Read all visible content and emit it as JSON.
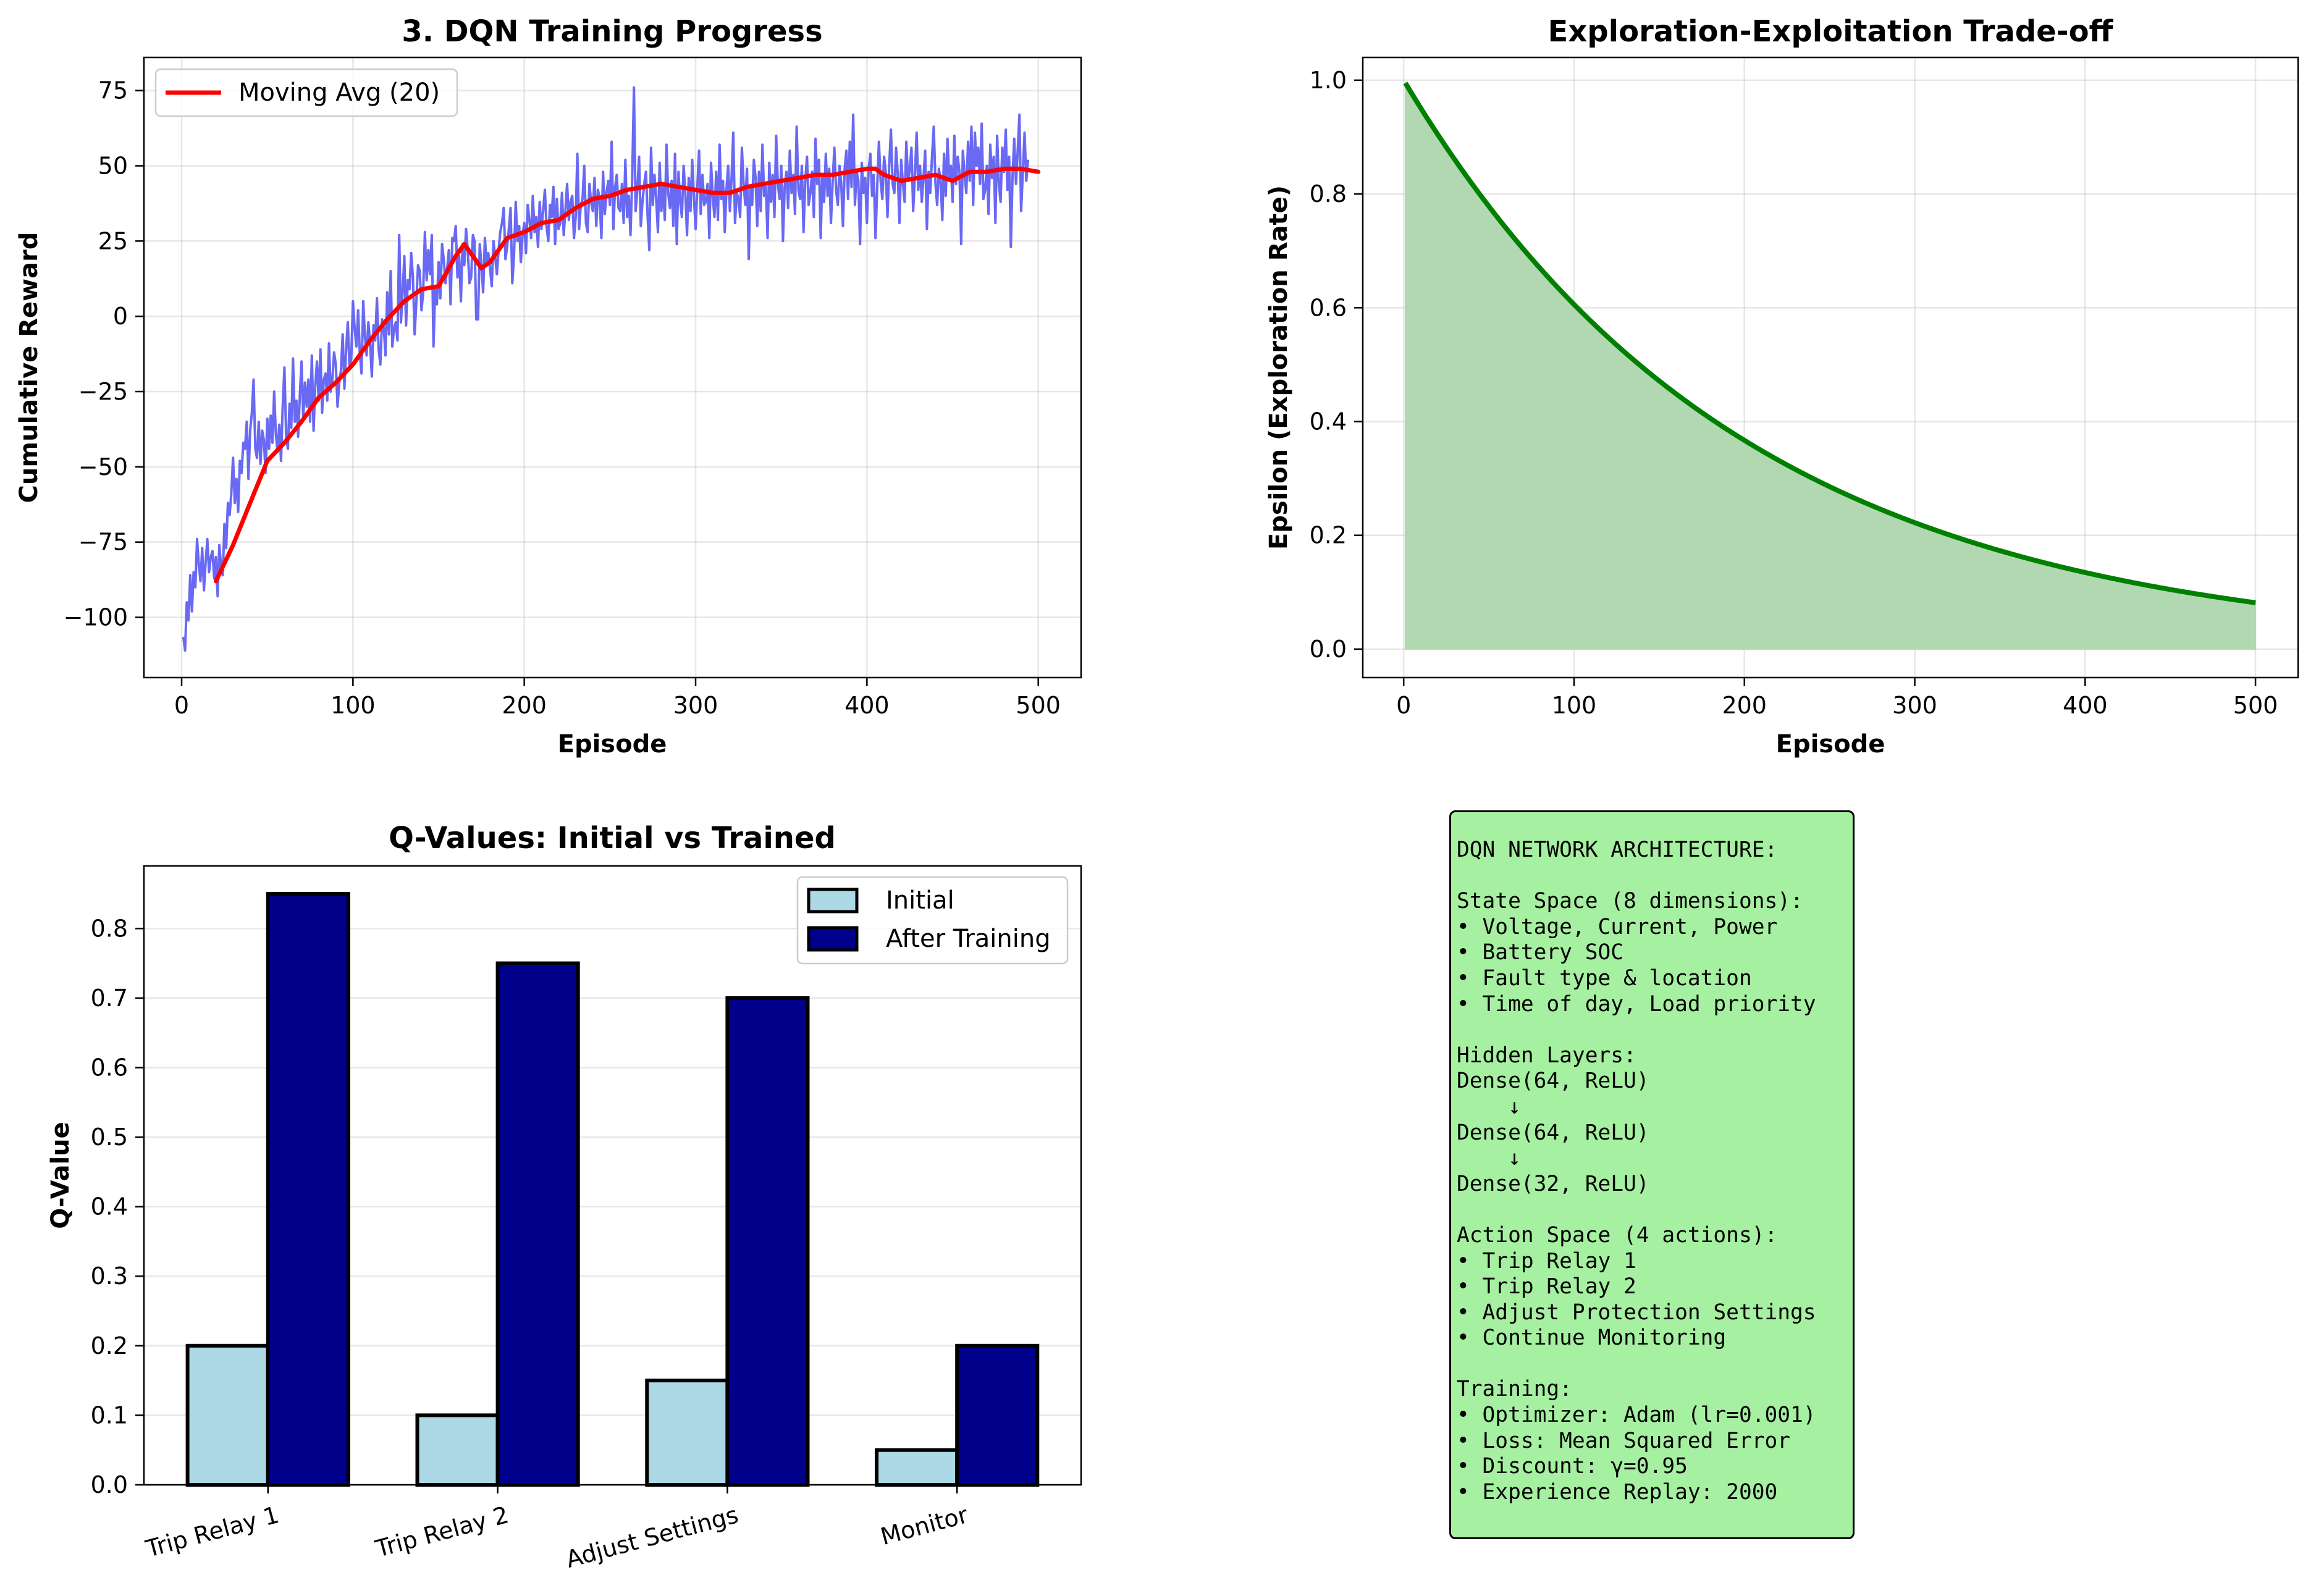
{
  "chart_data": [
    {
      "type": "line",
      "title": "3. DQN Training Progress",
      "xlabel": "Episode",
      "ylabel": "Cumulative Reward",
      "xlim": [
        -22,
        525
      ],
      "ylim": [
        -120,
        86
      ],
      "xticks": [
        0,
        100,
        200,
        300,
        400,
        500
      ],
      "yticks": [
        -100,
        -75,
        -50,
        -25,
        0,
        25,
        50,
        75
      ],
      "grid": true,
      "legend": "top-left",
      "series": [
        {
          "name": "",
          "color": "#6161f2",
          "x_start": 1,
          "x_step": 1,
          "values": [
            -106.5,
            -111,
            -95,
            -101,
            -86,
            -98,
            -85,
            -90,
            -74,
            -82,
            -88,
            -77,
            -91,
            -82,
            -74,
            -85,
            -80,
            -78,
            -87,
            -80,
            -93,
            -76,
            -83,
            -86,
            -69,
            -77,
            -62,
            -66,
            -59,
            -47,
            -62,
            -54,
            -65,
            -48,
            -52,
            -42,
            -44,
            -35,
            -54,
            -38,
            -32,
            -21,
            -44,
            -47,
            -35,
            -49,
            -38,
            -41,
            -52,
            -34,
            -44,
            -33,
            -42,
            -25,
            -39,
            -45,
            -36,
            -48,
            -30,
            -17,
            -40,
            -44,
            -29,
            -37,
            -14,
            -35,
            -28,
            -40,
            -26,
            -15,
            -34,
            -22,
            -30,
            -21,
            -35,
            -13,
            -38,
            -23,
            -15,
            -28,
            -11,
            -32,
            -21,
            -19,
            -28,
            -9,
            -25,
            -21,
            -12,
            -16,
            -30,
            -22,
            -18,
            -6,
            -24,
            -11,
            -2,
            -17,
            -14,
            5,
            -4,
            -10,
            2,
            -12,
            -19,
            5,
            -7,
            -13,
            -2,
            -9,
            -20,
            -3,
            -8,
            6,
            -11,
            -16,
            -1,
            -4,
            -13,
            8,
            -6,
            15,
            -10,
            -4,
            -2,
            -8,
            27,
            -2,
            8,
            20,
            -3,
            12,
            9,
            21,
            13,
            -6,
            5,
            17,
            15,
            2,
            8,
            28,
            12,
            22,
            14,
            27,
            -10,
            10,
            4,
            18,
            6,
            24,
            19,
            11,
            16,
            22,
            4,
            26,
            25,
            30,
            13,
            20,
            5,
            24,
            17,
            29,
            22,
            11,
            13,
            27,
            25,
            -1,
            -1,
            24,
            17,
            8,
            26,
            18,
            21,
            16,
            10,
            25,
            20,
            14,
            22,
            28,
            31,
            36,
            19,
            23,
            29,
            36,
            11,
            20,
            38,
            25,
            30,
            18,
            27,
            31,
            21,
            37,
            32,
            26,
            40,
            28,
            33,
            23,
            38,
            29,
            35,
            42,
            30,
            25,
            37,
            33,
            43,
            24,
            39,
            29,
            31,
            41,
            27,
            35,
            44,
            32,
            38,
            40,
            26,
            33,
            54,
            29,
            37,
            39,
            50,
            31,
            28,
            44,
            38,
            35,
            46,
            30,
            42,
            39,
            26,
            48,
            34,
            41,
            45,
            37,
            58,
            29,
            43,
            47,
            36,
            35,
            44,
            31,
            52,
            33,
            40,
            27,
            46,
            76,
            35,
            42,
            53,
            30,
            38,
            44,
            48,
            33,
            22,
            56,
            37,
            47,
            39,
            28,
            51,
            35,
            43,
            32,
            57,
            41,
            36,
            45,
            30,
            54,
            24,
            48,
            38,
            33,
            50,
            41,
            27,
            46,
            35,
            52,
            40,
            29,
            43,
            55,
            34,
            47,
            37,
            38,
            44,
            26,
            51,
            40,
            33,
            48,
            32,
            57,
            39,
            45,
            28,
            42,
            50,
            35,
            46,
            61,
            31,
            41,
            39,
            33,
            56,
            44,
            37,
            49,
            19,
            43,
            37,
            52,
            46,
            30,
            48,
            35,
            57,
            40,
            43,
            26,
            51,
            38,
            47,
            33,
            60,
            44,
            39,
            50,
            25,
            43,
            48,
            36,
            55,
            41,
            47,
            34,
            63,
            42,
            39,
            50,
            28,
            45,
            53,
            37,
            41,
            48,
            33,
            59,
            44,
            52,
            26,
            47,
            38,
            54,
            40,
            49,
            31,
            45,
            56,
            42,
            37,
            50,
            44,
            30,
            49,
            55,
            39,
            58,
            43,
            67,
            37,
            48,
            45,
            24,
            51,
            41,
            46,
            31,
            49,
            54,
            40,
            47,
            26,
            43,
            58,
            45,
            39,
            53,
            48,
            33,
            50,
            62,
            44,
            41,
            56,
            47,
            31,
            52,
            44,
            38,
            58,
            45,
            49,
            56,
            35,
            47,
            61,
            42,
            50,
            38,
            46,
            55,
            29,
            48,
            41,
            53,
            63,
            44,
            37,
            49,
            45,
            32,
            54,
            40,
            59,
            46,
            50,
            38,
            60,
            44,
            53,
            48,
            24,
            55,
            47,
            41,
            58,
            45,
            63,
            37,
            61,
            50,
            56,
            44,
            64,
            39,
            42,
            50,
            34,
            57,
            46,
            53,
            31,
            60,
            44,
            38,
            56,
            48,
            62,
            42,
            53,
            23,
            47,
            59,
            44,
            55,
            67,
            35,
            48,
            61,
            45,
            52
          ]
        },
        {
          "name": "Moving Avg (20)",
          "color": "#ff0000",
          "x": [
            20,
            30,
            40,
            50,
            60,
            70,
            80,
            90,
            100,
            110,
            120,
            130,
            140,
            150,
            160,
            165,
            170,
            175,
            180,
            190,
            200,
            210,
            220,
            230,
            240,
            250,
            260,
            270,
            280,
            300,
            310,
            320,
            330,
            340,
            350,
            360,
            370,
            380,
            390,
            400,
            405,
            410,
            420,
            430,
            440,
            450,
            460,
            470,
            480,
            490,
            500
          ],
          "values": [
            -88,
            -76,
            -62,
            -48,
            -42,
            -35,
            -27,
            -22,
            -16,
            -8,
            -1,
            5,
            9,
            10,
            20,
            24,
            20,
            16,
            18,
            26,
            28,
            31,
            32,
            36,
            39,
            40,
            42,
            43,
            44,
            42,
            41,
            41,
            43,
            44,
            45,
            46,
            47,
            47,
            48,
            49,
            49,
            47,
            45,
            46,
            47,
            45,
            48,
            48,
            49,
            49,
            48
          ]
        }
      ]
    },
    {
      "type": "area",
      "title": "Exploration-Exploitation Trade-off",
      "xlabel": "Episode",
      "ylabel": "Epsilon (Exploration Rate)",
      "xlim": [
        -24,
        525
      ],
      "ylim": [
        -0.05,
        1.04
      ],
      "xticks": [
        0,
        100,
        200,
        300,
        400,
        500
      ],
      "yticks": [
        0.0,
        0.2,
        0.4,
        0.6,
        0.8,
        1.0
      ],
      "grid": true,
      "series": [
        {
          "name": "",
          "color": "#008000",
          "fill": "#b2d8b2",
          "formula": "epsilon = 0.995^episode",
          "x_range": [
            1,
            500
          ],
          "epsilon_start": 0.995,
          "decay": 0.995
        }
      ]
    },
    {
      "type": "bar",
      "title": "Q-Values: Initial vs Trained",
      "xlabel": "",
      "ylabel": "Q-Value",
      "categories": [
        "Trip Relay 1",
        "Trip Relay 2",
        "Adjust Settings",
        "Monitor"
      ],
      "ylim": [
        0,
        0.89
      ],
      "yticks": [
        0.0,
        0.1,
        0.2,
        0.3,
        0.4,
        0.5,
        0.6,
        0.7,
        0.8
      ],
      "grid": true,
      "legend": "top-right",
      "series": [
        {
          "name": "Initial",
          "color": "#add8e6",
          "values": [
            0.2,
            0.1,
            0.15,
            0.05
          ]
        },
        {
          "name": "After Training",
          "color": "#00008b",
          "values": [
            0.85,
            0.75,
            0.7,
            0.2
          ]
        }
      ]
    }
  ],
  "info_box": {
    "text": "DQN NETWORK ARCHITECTURE:\n\nState Space (8 dimensions):\n• Voltage, Current, Power\n• Battery SOC\n• Fault type & location\n• Time of day, Load priority\n\nHidden Layers:\nDense(64, ReLU)\n    ↓\nDense(64, ReLU)\n    ↓\nDense(32, ReLU)\n\nAction Space (4 actions):\n• Trip Relay 1\n• Trip Relay 2\n• Adjust Protection Settings\n• Continue Monitoring\n\nTraining:\n• Optimizer: Adam (lr=0.001)\n• Loss: Mean Squared Error\n• Discount: γ=0.95\n• Experience Replay: 2000",
    "background": "#a6f0a1"
  }
}
